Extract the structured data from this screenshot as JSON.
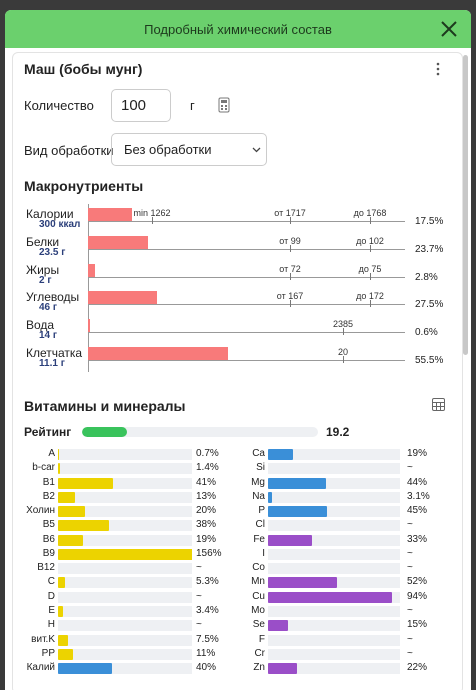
{
  "header": {
    "title": "Подробный химический состав"
  },
  "product": {
    "name": "Маш (бобы мунг)"
  },
  "quantity": {
    "label": "Количество",
    "value": "100",
    "unit": "г"
  },
  "processing": {
    "label": "Вид обработки",
    "value": "Без обработки"
  },
  "macros": {
    "title": "Макронутриенты",
    "rows": [
      {
        "name": "Калории",
        "amount": "300 ккал",
        "markers": [
          "min 1262",
          "от 1717",
          "до 1768"
        ],
        "percent": 17.5,
        "percent_label": "17.5%"
      },
      {
        "name": "Белки",
        "amount": "23.5 г",
        "markers": [
          "от 99",
          "до 102"
        ],
        "percent": 23.7,
        "percent_label": "23.7%"
      },
      {
        "name": "Жиры",
        "amount": "2 г",
        "markers": [
          "от 72",
          "до 75"
        ],
        "percent": 2.8,
        "percent_label": "2.8%"
      },
      {
        "name": "Углеводы",
        "amount": "46 г",
        "markers": [
          "от 167",
          "до 172"
        ],
        "percent": 27.5,
        "percent_label": "27.5%"
      },
      {
        "name": "Вода",
        "amount": "14 г",
        "markers": [
          "2385"
        ],
        "percent": 0.6,
        "percent_label": "0.6%"
      },
      {
        "name": "Клетчатка",
        "amount": "11.1 г",
        "markers": [
          "20"
        ],
        "percent": 55.5,
        "percent_label": "55.5%"
      }
    ]
  },
  "vitamins": {
    "title": "Витамины и минералы",
    "rating": {
      "label": "Рейтинг",
      "value": 19.2
    },
    "left": [
      {
        "name": "A",
        "value": 0.7,
        "label": "0.7%",
        "color": "#ecd300"
      },
      {
        "name": "b-car",
        "value": 1.4,
        "label": "1.4%",
        "color": "#ecd300"
      },
      {
        "name": "B1",
        "value": 41,
        "label": "41%",
        "color": "#ecd300"
      },
      {
        "name": "B2",
        "value": 13,
        "label": "13%",
        "color": "#ecd300"
      },
      {
        "name": "Холин",
        "value": 20,
        "label": "20%",
        "color": "#ecd300"
      },
      {
        "name": "B5",
        "value": 38,
        "label": "38%",
        "color": "#ecd300"
      },
      {
        "name": "B6",
        "value": 19,
        "label": "19%",
        "color": "#ecd300"
      },
      {
        "name": "B9",
        "value": 156,
        "label": "156%",
        "color": "#ecd300"
      },
      {
        "name": "B12",
        "value": null,
        "label": "~",
        "color": "#ecd300"
      },
      {
        "name": "C",
        "value": 5.3,
        "label": "5.3%",
        "color": "#ecd300"
      },
      {
        "name": "D",
        "value": null,
        "label": "~",
        "color": "#ecd300"
      },
      {
        "name": "E",
        "value": 3.4,
        "label": "3.4%",
        "color": "#ecd300"
      },
      {
        "name": "H",
        "value": null,
        "label": "~",
        "color": "#ecd300"
      },
      {
        "name": "вит.K",
        "value": 7.5,
        "label": "7.5%",
        "color": "#ecd300"
      },
      {
        "name": "PP",
        "value": 11,
        "label": "11%",
        "color": "#ecd300"
      },
      {
        "name": "Калий",
        "value": 40,
        "label": "40%",
        "color": "#3a8fd8"
      }
    ],
    "right": [
      {
        "name": "Ca",
        "value": 19,
        "label": "19%",
        "color": "#3a8fd8"
      },
      {
        "name": "Si",
        "value": null,
        "label": "~",
        "color": "#3a8fd8"
      },
      {
        "name": "Mg",
        "value": 44,
        "label": "44%",
        "color": "#3a8fd8"
      },
      {
        "name": "Na",
        "value": 3.1,
        "label": "3.1%",
        "color": "#3a8fd8"
      },
      {
        "name": "P",
        "value": 45,
        "label": "45%",
        "color": "#3a8fd8"
      },
      {
        "name": "Cl",
        "value": null,
        "label": "~",
        "color": "#3a8fd8"
      },
      {
        "name": "Fe",
        "value": 33,
        "label": "33%",
        "color": "#9a4ec8"
      },
      {
        "name": "I",
        "value": null,
        "label": "~",
        "color": "#9a4ec8"
      },
      {
        "name": "Co",
        "value": null,
        "label": "~",
        "color": "#9a4ec8"
      },
      {
        "name": "Mn",
        "value": 52,
        "label": "52%",
        "color": "#9a4ec8"
      },
      {
        "name": "Cu",
        "value": 94,
        "label": "94%",
        "color": "#9a4ec8"
      },
      {
        "name": "Mo",
        "value": null,
        "label": "~",
        "color": "#9a4ec8"
      },
      {
        "name": "Se",
        "value": 15,
        "label": "15%",
        "color": "#9a4ec8"
      },
      {
        "name": "F",
        "value": null,
        "label": "~",
        "color": "#9a4ec8"
      },
      {
        "name": "Cr",
        "value": null,
        "label": "~",
        "color": "#9a4ec8"
      },
      {
        "name": "Zn",
        "value": 22,
        "label": "22%",
        "color": "#9a4ec8"
      }
    ]
  }
}
